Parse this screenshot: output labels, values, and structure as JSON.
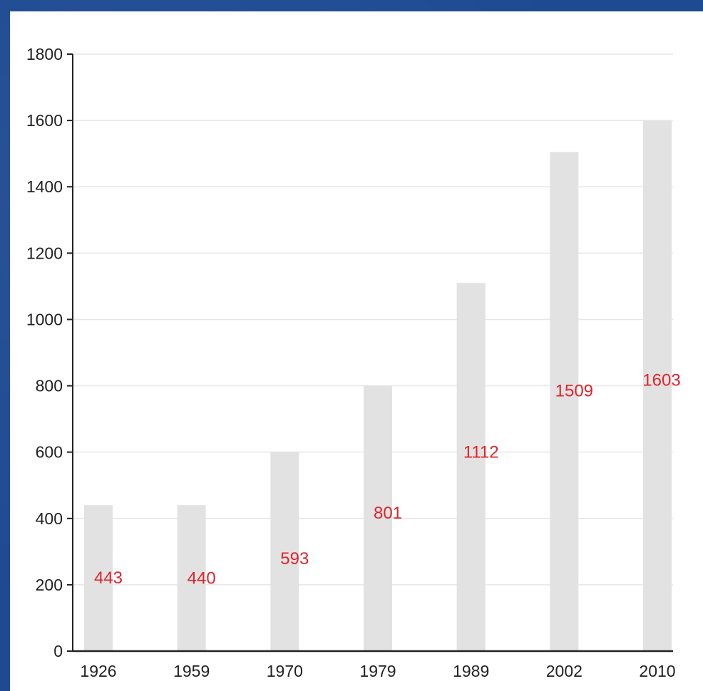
{
  "chart_data": {
    "type": "bar",
    "categories": [
      "1926",
      "1959",
      "1970",
      "1979",
      "1989",
      "2002",
      "2010"
    ],
    "values": [
      443,
      440,
      593,
      801,
      1112,
      1509,
      1603
    ],
    "bar_heights": [
      440,
      440,
      600,
      800,
      1110,
      1505,
      1600
    ],
    "title": "",
    "xlabel": "",
    "ylabel": "",
    "ylim": [
      0,
      1800
    ],
    "yticks": [
      "0",
      "200",
      "400",
      "600",
      "800",
      "1000",
      "1200",
      "1400",
      "1600",
      "1800"
    ],
    "grid": true,
    "legend": "none",
    "colors": {
      "bar": "#e2e2e2",
      "grid": "#e6e6e6",
      "axis": "#222222",
      "label": "#e0242c",
      "background": "#1f4a92"
    }
  }
}
